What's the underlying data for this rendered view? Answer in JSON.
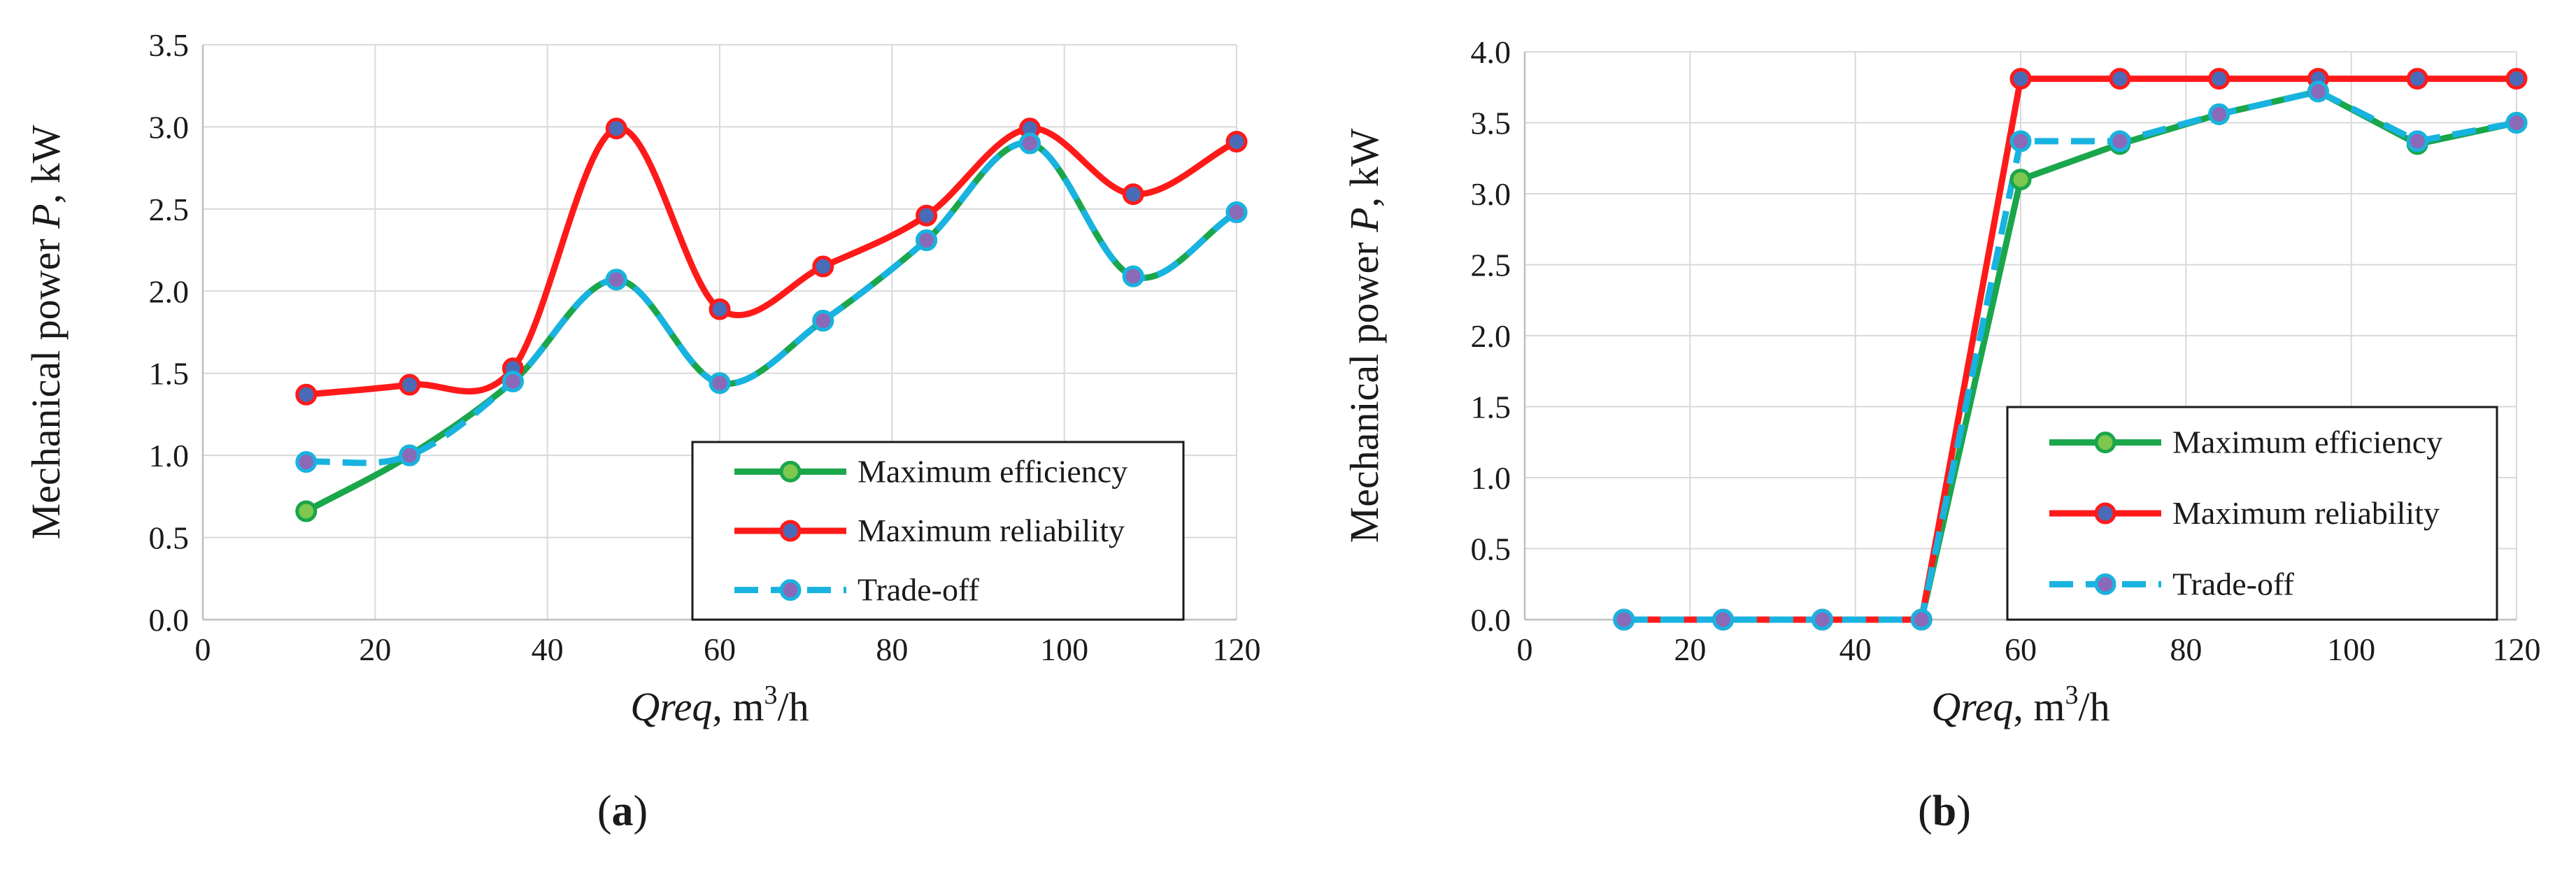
{
  "chart_data": [
    {
      "type": "line",
      "panel_label": "a",
      "panel_open": "(",
      "panel_close": ")",
      "title": "",
      "xlabel": {
        "italic": "Qreq",
        "rest": ", m",
        "sup": "3",
        "tail": "/h"
      },
      "ylabel": {
        "prefix": "Mechanical power ",
        "italic": "P",
        "suffix": ", kW"
      },
      "xlim": [
        0,
        120
      ],
      "ylim": [
        0,
        3.5
      ],
      "xticks": [
        0,
        20,
        40,
        60,
        80,
        100,
        120
      ],
      "xtick_labels": [
        "0",
        "20",
        "40",
        "60",
        "80",
        "100",
        "120"
      ],
      "yticks": [
        0,
        0.5,
        1,
        1.5,
        2,
        2.5,
        3,
        3.5
      ],
      "ytick_labels": [
        "0.0",
        "0.5",
        "1.0",
        "1.5",
        "2.0",
        "2.5",
        "3.0",
        "3.5"
      ],
      "grid": true,
      "legend_position": "bottom-right",
      "x": [
        12,
        24,
        36,
        48,
        60,
        72,
        84,
        96,
        108,
        120
      ],
      "series": [
        {
          "name": "Maximum efficiency",
          "color": "#1aa64a",
          "marker_fill": "#7ec850",
          "dashed": false,
          "smooth": true,
          "values": [
            0.66,
            1.0,
            1.45,
            2.07,
            1.44,
            1.82,
            2.31,
            2.9,
            2.09,
            2.48
          ]
        },
        {
          "name": "Maximum reliability",
          "color": "#ff1a1a",
          "marker_fill": "#4a6bb8",
          "dashed": false,
          "smooth": true,
          "values": [
            1.37,
            1.43,
            1.53,
            2.99,
            1.89,
            2.15,
            2.46,
            2.99,
            2.59,
            2.91
          ]
        },
        {
          "name": "Trade-off",
          "color": "#18b3e0",
          "marker_fill": "#8a6ab8",
          "dashed": true,
          "smooth": true,
          "values": [
            0.96,
            1.0,
            1.45,
            2.07,
            1.44,
            1.82,
            2.31,
            2.9,
            2.09,
            2.48
          ]
        }
      ]
    },
    {
      "type": "line",
      "panel_label": "b",
      "panel_open": "(",
      "panel_close": ")",
      "title": "",
      "xlabel": {
        "italic": "Qreq",
        "rest": ", m",
        "sup": "3",
        "tail": "/h"
      },
      "ylabel": {
        "prefix": "Mechanical power ",
        "italic": "P",
        "suffix": ", kW"
      },
      "xlim": [
        0,
        120
      ],
      "ylim": [
        0,
        4
      ],
      "xticks": [
        0,
        20,
        40,
        60,
        80,
        100,
        120
      ],
      "xtick_labels": [
        "0",
        "20",
        "40",
        "60",
        "80",
        "100",
        "120"
      ],
      "yticks": [
        0,
        0.5,
        1,
        1.5,
        2,
        2.5,
        3,
        3.5,
        4
      ],
      "ytick_labels": [
        "0.0",
        "0.5",
        "1.0",
        "1.5",
        "2.0",
        "2.5",
        "3.0",
        "3.5",
        "4.0"
      ],
      "grid": true,
      "legend_position": "bottom-right",
      "x": [
        12,
        24,
        36,
        48,
        60,
        72,
        84,
        96,
        108,
        120
      ],
      "series": [
        {
          "name": "Maximum efficiency",
          "color": "#1aa64a",
          "marker_fill": "#7ec850",
          "dashed": false,
          "smooth": false,
          "values": [
            0,
            0,
            0,
            0,
            3.1,
            3.35,
            3.56,
            3.72,
            3.35,
            3.5
          ]
        },
        {
          "name": "Maximum reliability",
          "color": "#ff1a1a",
          "marker_fill": "#4a6bb8",
          "dashed": false,
          "smooth": false,
          "values": [
            0,
            0,
            0,
            0,
            3.81,
            3.81,
            3.81,
            3.81,
            3.81,
            3.81
          ]
        },
        {
          "name": "Trade-off",
          "color": "#18b3e0",
          "marker_fill": "#8a6ab8",
          "dashed": true,
          "smooth": false,
          "values": [
            0,
            0,
            0,
            0,
            3.37,
            3.37,
            3.56,
            3.72,
            3.37,
            3.5
          ]
        }
      ]
    }
  ]
}
